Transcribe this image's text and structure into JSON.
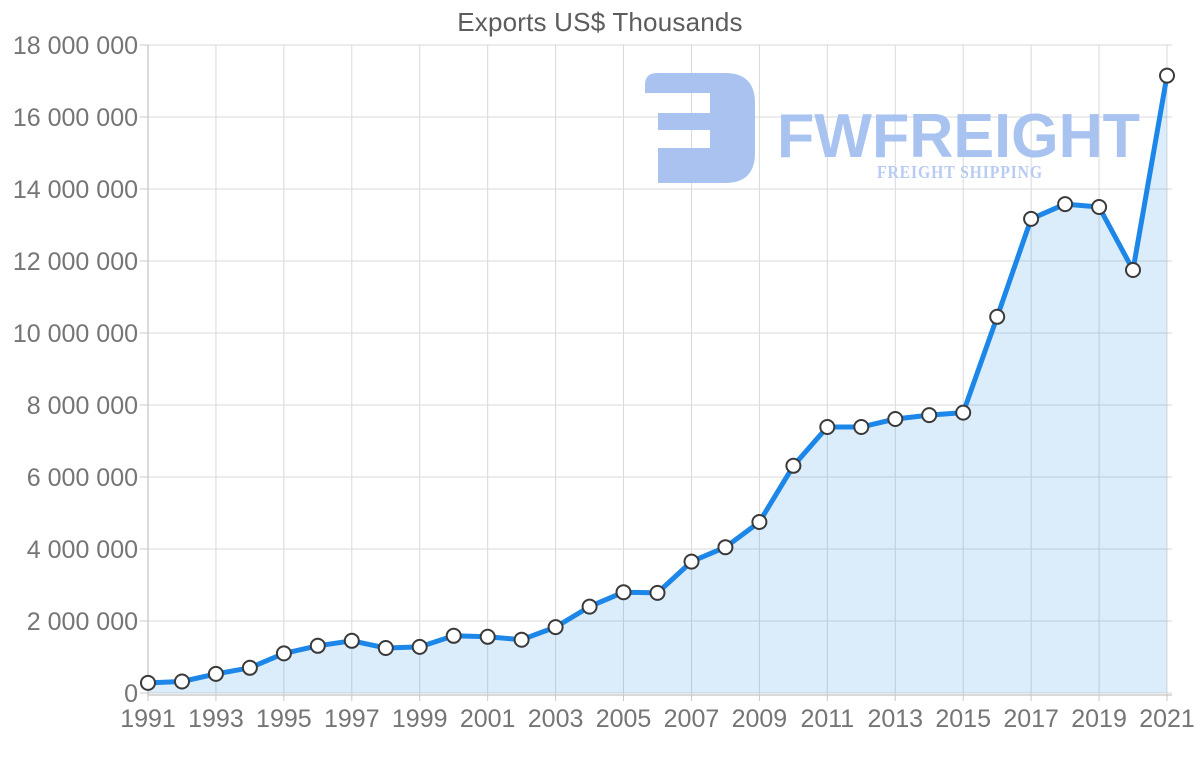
{
  "title": "Exports US$ Thousands",
  "watermark": {
    "brand": "FWFREIGHT",
    "tagline": "FREIGHT SHIPPING",
    "icon_color": "#a9c2f0",
    "brand_color": "#a9c3f1",
    "tagline_color": "#b7cbf3"
  },
  "chart_data": {
    "type": "area",
    "title": "Exports US$ Thousands",
    "xlabel": "",
    "ylabel": "",
    "x": [
      1991,
      1992,
      1993,
      1994,
      1995,
      1996,
      1997,
      1998,
      1999,
      2000,
      2001,
      2002,
      2003,
      2004,
      2005,
      2006,
      2007,
      2008,
      2009,
      2010,
      2011,
      2012,
      2013,
      2014,
      2015,
      2016,
      2017,
      2018,
      2019,
      2020,
      2021
    ],
    "series": [
      {
        "name": "Exports US$ Thousands",
        "values": [
          280000,
          320000,
          530000,
          700000,
          1100000,
          1310000,
          1450000,
          1250000,
          1280000,
          1590000,
          1560000,
          1480000,
          1830000,
          2400000,
          2800000,
          2780000,
          3650000,
          4050000,
          4750000,
          6310000,
          7390000,
          7390000,
          7610000,
          7720000,
          7790000,
          10450000,
          13170000,
          13580000,
          13500000,
          11750000,
          17150000
        ]
      }
    ],
    "ylim": [
      0,
      18000000
    ],
    "ytick_step": 2000000,
    "xtick_labels": [
      "1991",
      "1993",
      "1995",
      "1997",
      "1999",
      "2001",
      "2003",
      "2005",
      "2007",
      "2009",
      "2011",
      "2013",
      "2015",
      "2017",
      "2019",
      "2021"
    ],
    "ytick_labels": [
      "0",
      "2 000 000",
      "4 000 000",
      "6 000 000",
      "8 000 000",
      "10 000 000",
      "12 000 000",
      "14 000 000",
      "16 000 000",
      "18 000 000"
    ],
    "grid": true,
    "legend": "none",
    "marker": "circle",
    "colors": {
      "line": "#1c87e8",
      "area_fill": "rgba(30,135,232,0.16)",
      "marker_fill": "#ffffff",
      "marker_stroke": "#3a3a3a",
      "grid": "#d9d9d9",
      "axis": "#b5b5b5",
      "tick": "#c9c9c9",
      "label": "#757575",
      "title": "#5c5c5c"
    }
  }
}
